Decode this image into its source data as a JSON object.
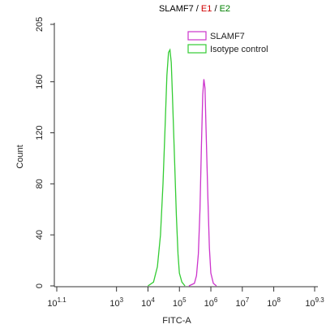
{
  "chart_data": {
    "type": "line",
    "title_parts": [
      {
        "text": "SLAMF7",
        "color": "#000000"
      },
      {
        "text": " / ",
        "color": "#000000"
      },
      {
        "text": "E1",
        "color": "#d00000"
      },
      {
        "text": " / ",
        "color": "#000000"
      },
      {
        "text": "E2",
        "color": "#008000"
      }
    ],
    "x_label": "FITC-A",
    "y_label": "Count",
    "xscale": "log",
    "xlim": [
      12.589254117941673,
      1995262314.968879
    ],
    "xticks": [
      {
        "value": 12.589254117941673,
        "label": "10",
        "exponent": "1.1"
      },
      {
        "value": 1000,
        "label": "10",
        "exponent": "3"
      },
      {
        "value": 10000,
        "label": "10",
        "exponent": "4"
      },
      {
        "value": 100000,
        "label": "10",
        "exponent": "5"
      },
      {
        "value": 1000000,
        "label": "10",
        "exponent": "6"
      },
      {
        "value": 10000000,
        "label": "10",
        "exponent": "7"
      },
      {
        "value": 100000000,
        "label": "10",
        "exponent": "8"
      },
      {
        "value": 1995262314.968879,
        "label": "10",
        "exponent": "9.3"
      }
    ],
    "ylim": [
      0,
      205
    ],
    "yticks": [
      0,
      40,
      80,
      120,
      160,
      205
    ],
    "legend": "top-right",
    "series": [
      {
        "name": "SLAMF7",
        "color": "#cc33cc",
        "x": [
          200000,
          300000,
          350000,
          400000,
          450000,
          500000,
          550000,
          600000,
          650000,
          700000,
          800000,
          900000,
          1000000,
          1200000,
          1500000
        ],
        "values": [
          0,
          2,
          8,
          25,
          60,
          110,
          150,
          162,
          155,
          125,
          70,
          30,
          10,
          2,
          0
        ]
      },
      {
        "name": "Isotype control",
        "color": "#33cc33",
        "x": [
          10000,
          15000,
          20000,
          25000,
          30000,
          35000,
          40000,
          45000,
          50000,
          55000,
          60000,
          70000,
          80000,
          90000,
          100000,
          120000,
          150000
        ],
        "values": [
          0,
          3,
          15,
          40,
          80,
          125,
          165,
          183,
          185,
          175,
          150,
          100,
          55,
          25,
          10,
          3,
          0
        ]
      }
    ]
  }
}
